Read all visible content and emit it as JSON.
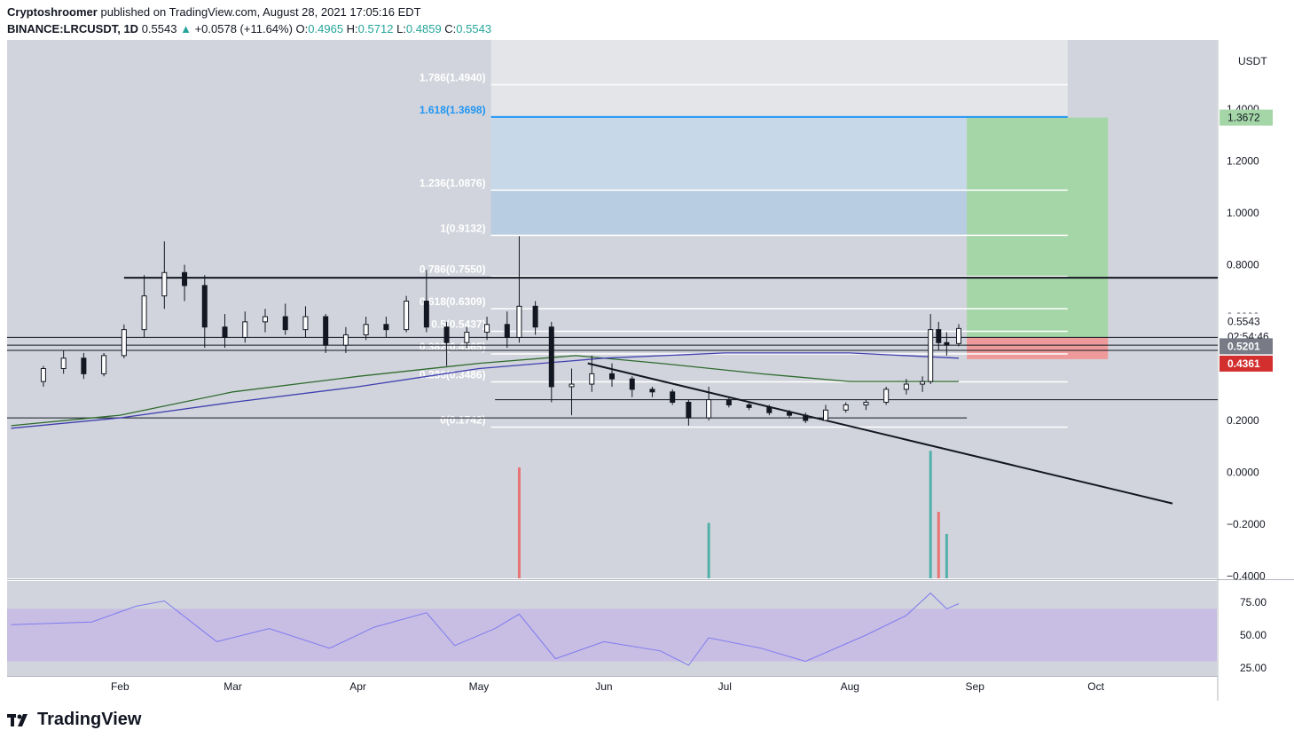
{
  "header": {
    "publisher": "Cryptoshroomer",
    "published_text": "published on TradingView.com, August 28, 2021 17:05:16 EDT",
    "symbol": "BINANCE:LRCUSDT, 1D",
    "last": "0.5543",
    "change": "+0.0578 (+11.64%)",
    "o_label": "O:",
    "o_value": "0.4965",
    "h_label": "H:",
    "h_value": "0.5712",
    "l_label": "L:",
    "l_value": "0.4859",
    "c_label": "C:",
    "c_value": "0.5543"
  },
  "footer": {
    "brand": "TradingView"
  },
  "colors": {
    "bg": "#d1d4dc",
    "up": "#26a69a",
    "down": "#ef5350",
    "fib_blue": "#2196f3",
    "ma_green": "#2e6b2e",
    "ma_blue": "#3f3fb0",
    "rsi": "#7e7bf0",
    "target_green": "#a5d6a7",
    "stop_red": "#ef9a9a"
  },
  "chart_data": {
    "type": "candlestick",
    "symbol": "BINANCE:LRCUSDT",
    "interval": "1D",
    "price_axis": {
      "unit": "USDT",
      "ticks": [
        "1.4000",
        "1.2000",
        "1.0000",
        "0.8000",
        "0.6000",
        "0.2000",
        "0.0000",
        "−0.2000",
        "−0.4000"
      ],
      "range": [
        -0.4,
        1.6
      ]
    },
    "time_axis": {
      "ticks": [
        "Feb",
        "Mar",
        "Apr",
        "May",
        "Jun",
        "Jul",
        "Aug",
        "Sep",
        "Oct"
      ]
    },
    "price_labels": [
      {
        "text": "1.3672",
        "value": 1.3672,
        "kind": "target"
      },
      {
        "text": "0.5543",
        "value": 0.5543,
        "kind": "last"
      },
      {
        "text": "02:54:46",
        "value": 0.5543,
        "kind": "countdown"
      },
      {
        "text": "0.5201",
        "value": 0.5201,
        "kind": "entry"
      },
      {
        "text": "0.4361",
        "value": 0.4361,
        "kind": "stop"
      }
    ],
    "fib_levels": [
      {
        "label": "1.786(1.4940)",
        "value": 1.494
      },
      {
        "label": "1.618(1.3698)",
        "value": 1.3698
      },
      {
        "label": "1.236(1.0876)",
        "value": 1.0876
      },
      {
        "label": "1(0.9132)",
        "value": 0.9132
      },
      {
        "label": "0.786(0.7550)",
        "value": 0.755
      },
      {
        "label": "0.618(0.6309)",
        "value": 0.6309
      },
      {
        "label": "0.5(0.5437)",
        "value": 0.5437
      },
      {
        "label": "0.382(0.4565)",
        "value": 0.4565
      },
      {
        "label": "0.236(0.3486)",
        "value": 0.3486
      },
      {
        "label": "0(0.1742)",
        "value": 0.1742
      }
    ],
    "horizontal_lines": [
      0.75,
      0.52,
      0.49,
      0.47,
      0.28,
      0.21
    ],
    "trendline": {
      "from": {
        "date": "2021-05-28",
        "price": 0.42
      },
      "to": {
        "date": "2021-10-20",
        "price": -0.12
      }
    },
    "long_position": {
      "entry": 0.5201,
      "target": 1.3672,
      "stop": 0.4361
    },
    "candles": [
      {
        "date": "2021-01-13",
        "o": 0.35,
        "h": 0.41,
        "l": 0.33,
        "c": 0.4
      },
      {
        "date": "2021-01-18",
        "o": 0.4,
        "h": 0.47,
        "l": 0.38,
        "c": 0.44
      },
      {
        "date": "2021-01-23",
        "o": 0.44,
        "h": 0.46,
        "l": 0.36,
        "c": 0.38
      },
      {
        "date": "2021-01-28",
        "o": 0.38,
        "h": 0.46,
        "l": 0.37,
        "c": 0.45
      },
      {
        "date": "2021-02-02",
        "o": 0.45,
        "h": 0.57,
        "l": 0.44,
        "c": 0.55
      },
      {
        "date": "2021-02-07",
        "o": 0.55,
        "h": 0.76,
        "l": 0.52,
        "c": 0.68
      },
      {
        "date": "2021-02-12",
        "o": 0.68,
        "h": 0.89,
        "l": 0.63,
        "c": 0.77
      },
      {
        "date": "2021-02-17",
        "o": 0.77,
        "h": 0.8,
        "l": 0.66,
        "c": 0.72
      },
      {
        "date": "2021-02-22",
        "o": 0.72,
        "h": 0.76,
        "l": 0.48,
        "c": 0.56
      },
      {
        "date": "2021-02-27",
        "o": 0.56,
        "h": 0.61,
        "l": 0.48,
        "c": 0.52
      },
      {
        "date": "2021-03-04",
        "o": 0.52,
        "h": 0.62,
        "l": 0.5,
        "c": 0.58
      },
      {
        "date": "2021-03-09",
        "o": 0.58,
        "h": 0.63,
        "l": 0.54,
        "c": 0.6
      },
      {
        "date": "2021-03-14",
        "o": 0.6,
        "h": 0.65,
        "l": 0.53,
        "c": 0.55
      },
      {
        "date": "2021-03-19",
        "o": 0.55,
        "h": 0.64,
        "l": 0.52,
        "c": 0.6
      },
      {
        "date": "2021-03-24",
        "o": 0.6,
        "h": 0.61,
        "l": 0.46,
        "c": 0.49
      },
      {
        "date": "2021-03-29",
        "o": 0.49,
        "h": 0.56,
        "l": 0.46,
        "c": 0.53
      },
      {
        "date": "2021-04-03",
        "o": 0.53,
        "h": 0.6,
        "l": 0.51,
        "c": 0.57
      },
      {
        "date": "2021-04-08",
        "o": 0.57,
        "h": 0.6,
        "l": 0.52,
        "c": 0.55
      },
      {
        "date": "2021-04-13",
        "o": 0.55,
        "h": 0.68,
        "l": 0.54,
        "c": 0.66
      },
      {
        "date": "2021-04-18",
        "o": 0.66,
        "h": 0.78,
        "l": 0.54,
        "c": 0.56
      },
      {
        "date": "2021-04-23",
        "o": 0.56,
        "h": 0.58,
        "l": 0.41,
        "c": 0.5
      },
      {
        "date": "2021-04-28",
        "o": 0.5,
        "h": 0.56,
        "l": 0.48,
        "c": 0.54
      },
      {
        "date": "2021-05-03",
        "o": 0.54,
        "h": 0.6,
        "l": 0.51,
        "c": 0.57
      },
      {
        "date": "2021-05-08",
        "o": 0.57,
        "h": 0.62,
        "l": 0.48,
        "c": 0.52
      },
      {
        "date": "2021-05-11",
        "o": 0.52,
        "h": 0.91,
        "l": 0.5,
        "c": 0.64
      },
      {
        "date": "2021-05-15",
        "o": 0.64,
        "h": 0.66,
        "l": 0.53,
        "c": 0.56
      },
      {
        "date": "2021-05-19",
        "o": 0.56,
        "h": 0.58,
        "l": 0.27,
        "c": 0.33
      },
      {
        "date": "2021-05-24",
        "o": 0.33,
        "h": 0.4,
        "l": 0.22,
        "c": 0.34
      },
      {
        "date": "2021-05-29",
        "o": 0.34,
        "h": 0.45,
        "l": 0.31,
        "c": 0.38
      },
      {
        "date": "2021-06-03",
        "o": 0.38,
        "h": 0.42,
        "l": 0.33,
        "c": 0.36
      },
      {
        "date": "2021-06-08",
        "o": 0.36,
        "h": 0.37,
        "l": 0.29,
        "c": 0.32
      },
      {
        "date": "2021-06-13",
        "o": 0.32,
        "h": 0.33,
        "l": 0.29,
        "c": 0.31
      },
      {
        "date": "2021-06-18",
        "o": 0.31,
        "h": 0.32,
        "l": 0.26,
        "c": 0.27
      },
      {
        "date": "2021-06-22",
        "o": 0.27,
        "h": 0.28,
        "l": 0.18,
        "c": 0.21
      },
      {
        "date": "2021-06-27",
        "o": 0.21,
        "h": 0.33,
        "l": 0.2,
        "c": 0.28
      },
      {
        "date": "2021-07-02",
        "o": 0.28,
        "h": 0.29,
        "l": 0.25,
        "c": 0.26
      },
      {
        "date": "2021-07-07",
        "o": 0.26,
        "h": 0.27,
        "l": 0.24,
        "c": 0.25
      },
      {
        "date": "2021-07-12",
        "o": 0.25,
        "h": 0.26,
        "l": 0.22,
        "c": 0.23
      },
      {
        "date": "2021-07-17",
        "o": 0.23,
        "h": 0.24,
        "l": 0.21,
        "c": 0.22
      },
      {
        "date": "2021-07-21",
        "o": 0.22,
        "h": 0.23,
        "l": 0.19,
        "c": 0.2
      },
      {
        "date": "2021-07-26",
        "o": 0.2,
        "h": 0.26,
        "l": 0.2,
        "c": 0.24
      },
      {
        "date": "2021-07-31",
        "o": 0.24,
        "h": 0.27,
        "l": 0.23,
        "c": 0.26
      },
      {
        "date": "2021-08-05",
        "o": 0.26,
        "h": 0.28,
        "l": 0.24,
        "c": 0.27
      },
      {
        "date": "2021-08-10",
        "o": 0.27,
        "h": 0.33,
        "l": 0.26,
        "c": 0.32
      },
      {
        "date": "2021-08-15",
        "o": 0.32,
        "h": 0.36,
        "l": 0.3,
        "c": 0.34
      },
      {
        "date": "2021-08-19",
        "o": 0.34,
        "h": 0.37,
        "l": 0.31,
        "c": 0.35
      },
      {
        "date": "2021-08-21",
        "o": 0.35,
        "h": 0.61,
        "l": 0.34,
        "c": 0.55
      },
      {
        "date": "2021-08-23",
        "o": 0.55,
        "h": 0.58,
        "l": 0.47,
        "c": 0.5
      },
      {
        "date": "2021-08-25",
        "o": 0.5,
        "h": 0.54,
        "l": 0.45,
        "c": 0.49
      },
      {
        "date": "2021-08-28",
        "o": 0.4965,
        "h": 0.5712,
        "l": 0.4859,
        "c": 0.5543
      }
    ],
    "ma_green": [
      {
        "date": "2021-01-05",
        "v": 0.18
      },
      {
        "date": "2021-02-01",
        "v": 0.22
      },
      {
        "date": "2021-03-01",
        "v": 0.31
      },
      {
        "date": "2021-04-01",
        "v": 0.37
      },
      {
        "date": "2021-05-01",
        "v": 0.42
      },
      {
        "date": "2021-05-25",
        "v": 0.45
      },
      {
        "date": "2021-06-15",
        "v": 0.42
      },
      {
        "date": "2021-07-10",
        "v": 0.38
      },
      {
        "date": "2021-08-01",
        "v": 0.35
      },
      {
        "date": "2021-08-28",
        "v": 0.35
      }
    ],
    "ma_blue": [
      {
        "date": "2021-01-05",
        "v": 0.17
      },
      {
        "date": "2021-02-01",
        "v": 0.21
      },
      {
        "date": "2021-03-01",
        "v": 0.27
      },
      {
        "date": "2021-04-01",
        "v": 0.33
      },
      {
        "date": "2021-05-01",
        "v": 0.4
      },
      {
        "date": "2021-06-01",
        "v": 0.44
      },
      {
        "date": "2021-07-01",
        "v": 0.46
      },
      {
        "date": "2021-08-01",
        "v": 0.46
      },
      {
        "date": "2021-08-28",
        "v": 0.44
      }
    ],
    "volume": [
      {
        "date": "2021-05-11",
        "v": 1.0,
        "up": false
      },
      {
        "date": "2021-06-27",
        "v": 0.5,
        "up": true
      },
      {
        "date": "2021-08-21",
        "v": 1.15,
        "up": true
      },
      {
        "date": "2021-08-23",
        "v": 0.6,
        "up": false
      },
      {
        "date": "2021-08-25",
        "v": 0.4,
        "up": true
      }
    ],
    "rsi": {
      "ticks": [
        "75.00",
        "50.00",
        "25.00"
      ],
      "band": [
        30,
        70
      ],
      "series": [
        {
          "date": "2021-01-05",
          "v": 58
        },
        {
          "date": "2021-01-25",
          "v": 60
        },
        {
          "date": "2021-02-05",
          "v": 72
        },
        {
          "date": "2021-02-12",
          "v": 76
        },
        {
          "date": "2021-02-25",
          "v": 45
        },
        {
          "date": "2021-03-10",
          "v": 55
        },
        {
          "date": "2021-03-25",
          "v": 40
        },
        {
          "date": "2021-04-05",
          "v": 56
        },
        {
          "date": "2021-04-18",
          "v": 67
        },
        {
          "date": "2021-04-25",
          "v": 42
        },
        {
          "date": "2021-05-05",
          "v": 55
        },
        {
          "date": "2021-05-11",
          "v": 66
        },
        {
          "date": "2021-05-20",
          "v": 32
        },
        {
          "date": "2021-06-01",
          "v": 45
        },
        {
          "date": "2021-06-15",
          "v": 38
        },
        {
          "date": "2021-06-22",
          "v": 27
        },
        {
          "date": "2021-06-27",
          "v": 48
        },
        {
          "date": "2021-07-10",
          "v": 40
        },
        {
          "date": "2021-07-21",
          "v": 30
        },
        {
          "date": "2021-08-05",
          "v": 50
        },
        {
          "date": "2021-08-15",
          "v": 65
        },
        {
          "date": "2021-08-21",
          "v": 82
        },
        {
          "date": "2021-08-25",
          "v": 70
        },
        {
          "date": "2021-08-28",
          "v": 74
        }
      ]
    }
  }
}
